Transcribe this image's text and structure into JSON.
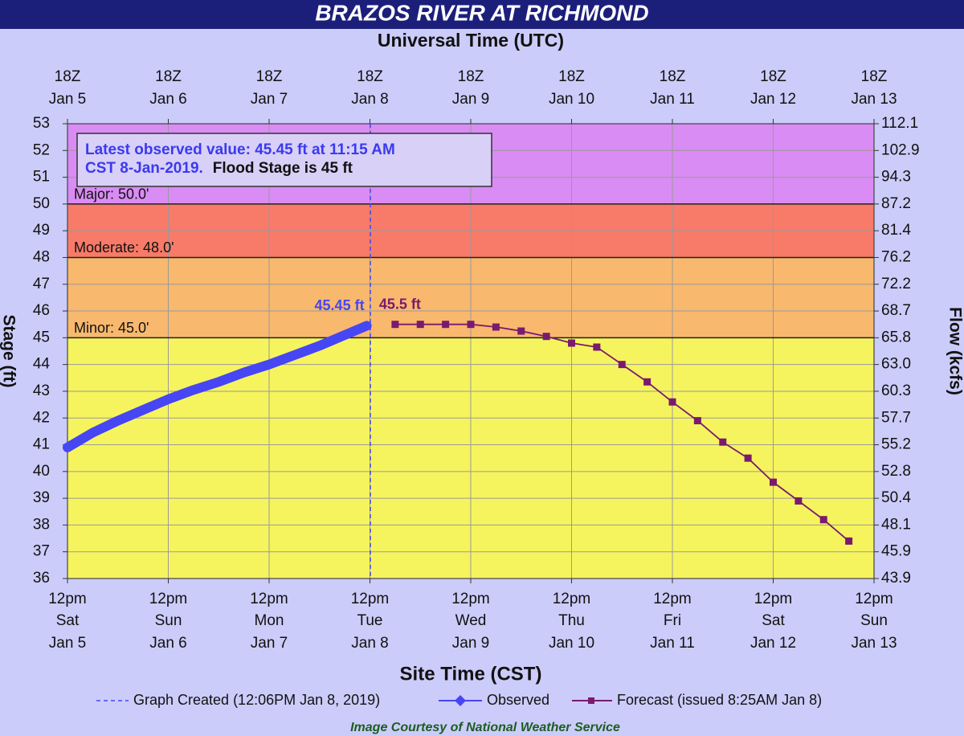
{
  "chart_data": {
    "type": "line",
    "title": "BRAZOS RIVER AT RICHMOND",
    "top_axis_label": "Universal Time (UTC)",
    "xlabel": "Site Time (CST)",
    "ylabel": "Stage (ft)",
    "y2label": "Flow (kcfs)",
    "xlim": [
      "Jan 5 12:00",
      "Jan 13 12:00"
    ],
    "xticks": [
      {
        "value": "Jan 5 12:00",
        "time": "12pm",
        "weekday": "Sat",
        "date": "Jan 5"
      },
      {
        "value": "Jan 6 12:00",
        "time": "12pm",
        "weekday": "Sun",
        "date": "Jan 6"
      },
      {
        "value": "Jan 7 12:00",
        "time": "12pm",
        "weekday": "Mon",
        "date": "Jan 7"
      },
      {
        "value": "Jan 8 12:00",
        "time": "12pm",
        "weekday": "Tue",
        "date": "Jan 8"
      },
      {
        "value": "Jan 9 12:00",
        "time": "12pm",
        "weekday": "Wed",
        "date": "Jan 9"
      },
      {
        "value": "Jan 10 12:00",
        "time": "12pm",
        "weekday": "Thu",
        "date": "Jan 10"
      },
      {
        "value": "Jan 11 12:00",
        "time": "12pm",
        "weekday": "Fri",
        "date": "Jan 11"
      },
      {
        "value": "Jan 12 12:00",
        "time": "12pm",
        "weekday": "Sat",
        "date": "Jan 12"
      },
      {
        "value": "Jan 13 12:00",
        "time": "12pm",
        "weekday": "Sun",
        "date": "Jan 13"
      }
    ],
    "x2ticks": [
      {
        "time": "18Z",
        "date": "Jan 5"
      },
      {
        "time": "18Z",
        "date": "Jan 6"
      },
      {
        "time": "18Z",
        "date": "Jan 7"
      },
      {
        "time": "18Z",
        "date": "Jan 8"
      },
      {
        "time": "18Z",
        "date": "Jan 9"
      },
      {
        "time": "18Z",
        "date": "Jan 10"
      },
      {
        "time": "18Z",
        "date": "Jan 11"
      },
      {
        "time": "18Z",
        "date": "Jan 12"
      },
      {
        "time": "18Z",
        "date": "Jan 13"
      }
    ],
    "ylim": [
      36,
      53
    ],
    "yticks": [
      36,
      37,
      38,
      39,
      40,
      41,
      42,
      43,
      44,
      45,
      46,
      47,
      48,
      49,
      50,
      51,
      52,
      53
    ],
    "y2ticks": [
      43.9,
      45.9,
      48.1,
      50.4,
      52.8,
      55.2,
      57.7,
      60.3,
      {
        "value": 63,
        "label": "63.0"
      },
      65.8,
      68.7,
      72.2,
      76.2,
      81.4,
      87.2,
      94.3,
      102.9,
      112.1
    ],
    "grid": true,
    "background_color": "#f6f45e",
    "flood_stages": [
      {
        "label": "Minor: 45.0'",
        "value": 45,
        "color": "#f8b86e"
      },
      {
        "label": "Moderate: 48.0'",
        "value": 48,
        "color": "#f87a68"
      },
      {
        "label": "Major: 50.0'",
        "value": 50,
        "color": "#d98cf3"
      }
    ],
    "series": [
      {
        "name": "Observed",
        "color": "#4646f5",
        "x": [
          "Jan 5 12:00",
          "Jan 5 18:00",
          "Jan 6 00:00",
          "Jan 6 06:00",
          "Jan 6 12:00",
          "Jan 6 18:00",
          "Jan 7 00:00",
          "Jan 7 06:00",
          "Jan 7 12:00",
          "Jan 7 18:00",
          "Jan 8 00:00",
          "Jan 8 06:00",
          "Jan 8 11:15"
        ],
        "values": [
          40.9,
          41.45,
          41.9,
          42.3,
          42.7,
          43.05,
          43.35,
          43.7,
          44.0,
          44.35,
          44.7,
          45.1,
          45.45
        ]
      },
      {
        "name": "Forecast (issued 8:25AM Jan 8)",
        "color": "#7a1a6e",
        "x": [
          "Jan 8 18:00",
          "Jan 9 00:00",
          "Jan 9 06:00",
          "Jan 9 12:00",
          "Jan 9 18:00",
          "Jan 10 00:00",
          "Jan 10 06:00",
          "Jan 10 12:00",
          "Jan 10 18:00",
          "Jan 11 00:00",
          "Jan 11 06:00",
          "Jan 11 12:00",
          "Jan 11 18:00",
          "Jan 12 00:00",
          "Jan 12 06:00",
          "Jan 12 12:00",
          "Jan 12 18:00",
          "Jan 13 00:00",
          "Jan 13 06:00"
        ],
        "values": [
          45.5,
          45.5,
          45.5,
          45.5,
          45.4,
          45.25,
          45.05,
          44.8,
          44.65,
          44.0,
          43.35,
          42.6,
          41.9,
          41.1,
          40.5,
          39.6,
          38.9,
          38.2,
          37.4
        ]
      }
    ],
    "graph_created": {
      "name": "Graph Created (12:06PM Jan 8, 2019)",
      "x": "Jan 8 12:06",
      "color": "#4646f5"
    },
    "annotations": [
      {
        "text": "45.45 ft",
        "series": 0
      },
      {
        "text": "45.5 ft",
        "series": 1
      }
    ],
    "info_box": {
      "lines": [
        "Latest observed value: 45.45 ft at 11:15 AM",
        "CST 8-Jan-2019."
      ],
      "flood_stage": "Flood Stage is 45 ft"
    },
    "credit": "Image Courtesy of National Weather Service"
  }
}
